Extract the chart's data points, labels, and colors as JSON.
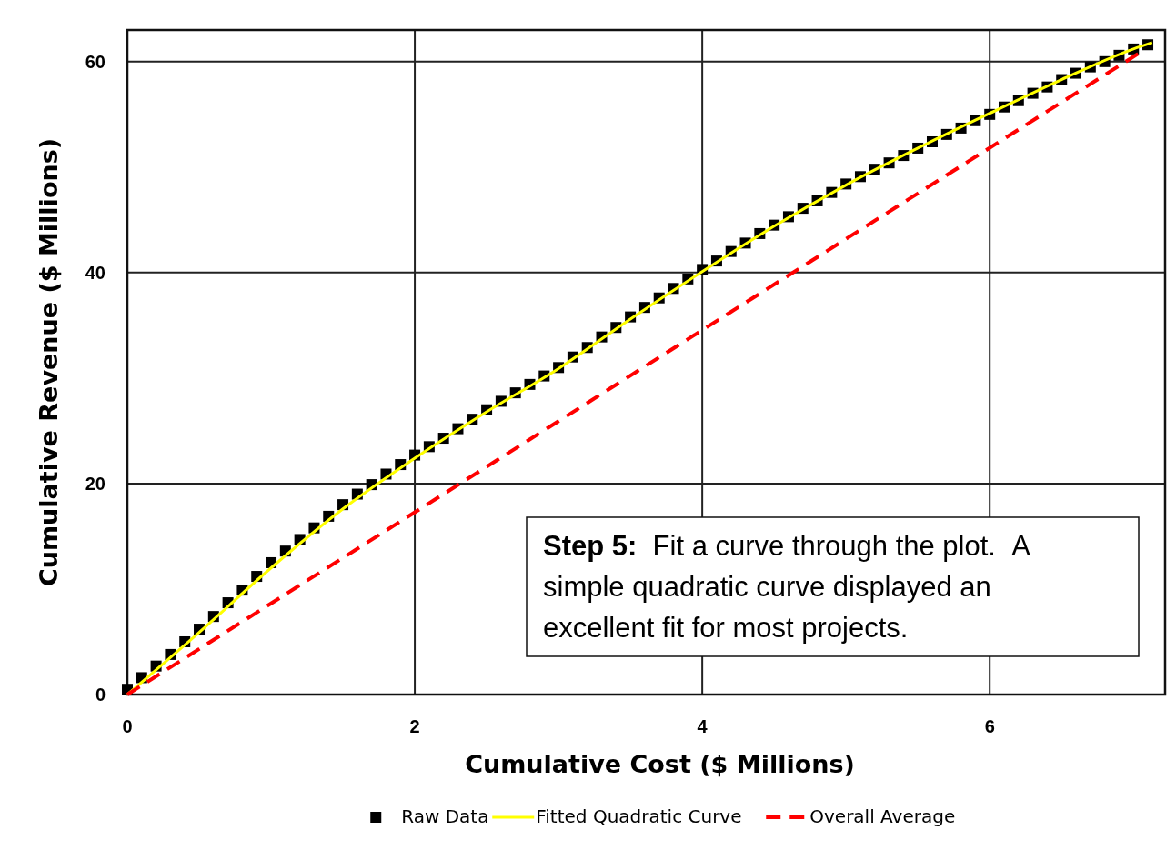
{
  "chart_data": {
    "type": "scatter",
    "xlabel": "Cumulative Cost ($ Millions)",
    "ylabel": "Cumulative Revenue ($ Millions)",
    "xlim": [
      0,
      7.22
    ],
    "ylim": [
      0,
      63
    ],
    "xticks": [
      0,
      2,
      4,
      6
    ],
    "yticks": [
      0,
      20,
      40,
      60
    ],
    "grid": true,
    "legend": "bottom",
    "annotations": [
      "Step 5:  Fit a curve through the plot.  A simple quadratic curve displayed an excellent fit for most projects."
    ],
    "series": [
      {
        "name": "Raw Data",
        "marker": "square",
        "color": "#000000",
        "x": [
          0,
          0.1,
          0.2,
          0.3,
          0.4,
          0.5,
          0.6,
          0.7,
          0.8,
          0.9,
          1.0,
          1.1,
          1.2,
          1.3,
          1.4,
          1.5,
          1.6,
          1.7,
          1.8,
          1.9,
          2.0,
          2.1,
          2.2,
          2.3,
          2.4,
          2.5,
          2.6,
          2.7,
          2.8,
          2.9,
          3.0,
          3.1,
          3.2,
          3.3,
          3.4,
          3.5,
          3.6,
          3.7,
          3.8,
          3.9,
          4.0,
          4.1,
          4.2,
          4.3,
          4.4,
          4.5,
          4.6,
          4.7,
          4.8,
          4.9,
          5.0,
          5.1,
          5.2,
          5.3,
          5.4,
          5.5,
          5.6,
          5.7,
          5.8,
          5.9,
          6.0,
          6.1,
          6.2,
          6.3,
          6.4,
          6.5,
          6.6,
          6.7,
          6.8,
          6.9,
          7.0,
          7.1
        ],
        "values": [
          0.5,
          1.6,
          2.7,
          3.8,
          5.0,
          6.2,
          7.4,
          8.7,
          9.9,
          11.2,
          12.5,
          13.6,
          14.7,
          15.8,
          16.9,
          18.0,
          19.0,
          19.9,
          20.9,
          21.8,
          22.7,
          23.5,
          24.3,
          25.2,
          26.1,
          27.0,
          27.8,
          28.6,
          29.4,
          30.2,
          31.0,
          32.0,
          32.9,
          33.9,
          34.8,
          35.8,
          36.7,
          37.6,
          38.5,
          39.4,
          40.3,
          41.1,
          42.0,
          42.8,
          43.7,
          44.5,
          45.3,
          46.1,
          46.8,
          47.6,
          48.4,
          49.1,
          49.8,
          50.4,
          51.1,
          51.8,
          52.4,
          53.1,
          53.7,
          54.4,
          55.0,
          55.7,
          56.3,
          57.0,
          57.6,
          58.3,
          58.9,
          59.5,
          60.0,
          60.6,
          61.2,
          61.6
        ]
      },
      {
        "name": "Fitted Quadratic Curve",
        "type": "line",
        "marker": "none",
        "line_style": "solid",
        "color": "#ffff00",
        "x": [
          0,
          0.5,
          1,
          1.5,
          2,
          2.5,
          3,
          3.5,
          4,
          4.5,
          5,
          5.5,
          6,
          6.5,
          7,
          7.13
        ],
        "values": [
          0,
          5.9,
          12.0,
          17.6,
          22.4,
          26.8,
          30.9,
          35.6,
          40.1,
          44.4,
          48.3,
          51.8,
          55.1,
          58.3,
          61.2,
          61.8
        ]
      },
      {
        "name": "Overall Average",
        "type": "line",
        "marker": "none",
        "line_style": "dashed",
        "color": "#ff0000",
        "x": [
          0,
          7.05
        ],
        "values": [
          0,
          60.9
        ]
      }
    ]
  }
}
